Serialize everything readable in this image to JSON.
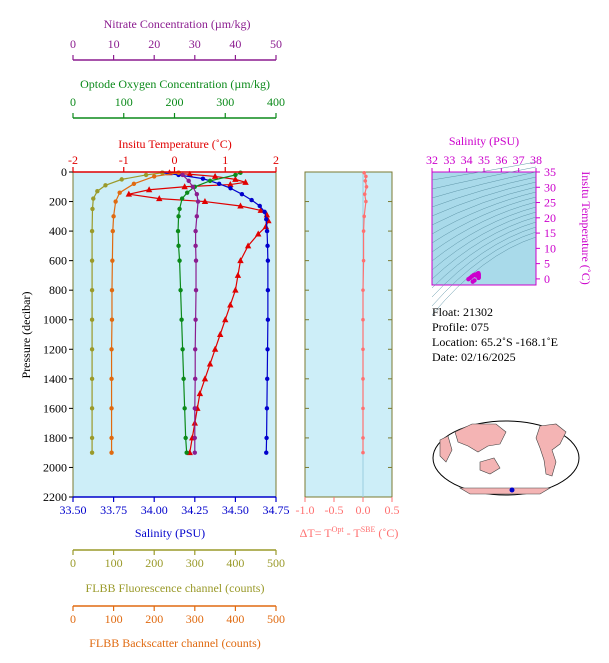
{
  "colors": {
    "nitrate": "#8b1c8f",
    "oxygen": "#0b8a1a",
    "temperature": "#e00000",
    "salinity": "#0000cc",
    "fluorescence": "#9a9a2a",
    "backscatter": "#e06a10",
    "delta": "#ff7070",
    "ts_axis": "#cc00cc",
    "panel_bg": "#cdeef8",
    "ts_bg": "#a9daea",
    "frame": "#7a7a30"
  },
  "info": {
    "float": "Float:  21302",
    "profile": "Profile:  075",
    "location": "Location:  65.2˚S  -168.1˚E",
    "date": "Date:  02/16/2025"
  },
  "map": {
    "marker_label": ""
  },
  "chart_data": [
    {
      "type": "line",
      "panel": "main",
      "ylabel": "Pressure (decibar)",
      "ylim": [
        2200,
        0
      ],
      "y_ticks": [
        0,
        200,
        400,
        600,
        800,
        1000,
        1200,
        1400,
        1600,
        1800,
        2000,
        2200
      ],
      "axes": {
        "nitrate": {
          "label": "Nitrate Concentration (µm/kg)",
          "range": [
            0,
            50
          ],
          "ticks": [
            0,
            10,
            20,
            30,
            40,
            50
          ]
        },
        "oxygen": {
          "label": "Optode Oxygen Concentration (µm/kg)",
          "range": [
            0,
            400
          ],
          "ticks": [
            0,
            100,
            200,
            300,
            400
          ]
        },
        "temperature": {
          "label": "Insitu Temperature (˚C)",
          "range": [
            -2,
            2
          ],
          "ticks": [
            -2,
            -1,
            0,
            1,
            2
          ]
        },
        "salinity": {
          "label": "Salinity (PSU)",
          "range": [
            33.5,
            34.75
          ],
          "ticks": [
            "33.50",
            "33.75",
            "34.00",
            "34.25",
            "34.50",
            "34.75"
          ]
        },
        "fluorescence": {
          "label": "FLBB Fluorescence channel (counts)",
          "range": [
            0,
            500
          ],
          "ticks": [
            0,
            100,
            200,
            300,
            400,
            500
          ]
        },
        "backscatter": {
          "label": "FLBB Backscatter channel (counts)",
          "range": [
            0,
            500
          ],
          "ticks": [
            0,
            100,
            200,
            300,
            400,
            500
          ]
        }
      },
      "series": [
        {
          "name": "Insitu Temperature",
          "axis": "temperature",
          "marker": "triangle",
          "points": [
            [
              -0.1,
              5
            ],
            [
              0.3,
              15
            ],
            [
              0.8,
              30
            ],
            [
              1.2,
              50
            ],
            [
              1.4,
              70
            ],
            [
              1.1,
              85
            ],
            [
              0.2,
              100
            ],
            [
              -0.5,
              120
            ],
            [
              -0.9,
              150
            ],
            [
              -0.3,
              180
            ],
            [
              0.6,
              200
            ],
            [
              1.3,
              230
            ],
            [
              1.7,
              260
            ],
            [
              1.82,
              290
            ],
            [
              1.85,
              330
            ],
            [
              1.8,
              370
            ],
            [
              1.65,
              420
            ],
            [
              1.45,
              500
            ],
            [
              1.3,
              600
            ],
            [
              1.25,
              700
            ],
            [
              1.2,
              800
            ],
            [
              1.1,
              900
            ],
            [
              1.0,
              1000
            ],
            [
              0.9,
              1100
            ],
            [
              0.8,
              1200
            ],
            [
              0.7,
              1300
            ],
            [
              0.6,
              1400
            ],
            [
              0.5,
              1500
            ],
            [
              0.45,
              1600
            ],
            [
              0.4,
              1700
            ],
            [
              0.35,
              1800
            ],
            [
              0.3,
              1900
            ]
          ]
        },
        {
          "name": "Salinity",
          "axis": "salinity",
          "marker": "circle",
          "points": [
            [
              34.05,
              5
            ],
            [
              34.15,
              20
            ],
            [
              34.3,
              45
            ],
            [
              34.4,
              80
            ],
            [
              34.47,
              110
            ],
            [
              34.54,
              150
            ],
            [
              34.6,
              190
            ],
            [
              34.65,
              230
            ],
            [
              34.68,
              270
            ],
            [
              34.69,
              320
            ],
            [
              34.695,
              400
            ],
            [
              34.698,
              500
            ],
            [
              34.7,
              600
            ],
            [
              34.7,
              800
            ],
            [
              34.7,
              1000
            ],
            [
              34.698,
              1200
            ],
            [
              34.696,
              1400
            ],
            [
              34.694,
              1600
            ],
            [
              34.692,
              1800
            ],
            [
              34.69,
              1900
            ]
          ]
        },
        {
          "name": "Optode Oxygen Concentration",
          "axis": "oxygen",
          "marker": "circle",
          "points": [
            [
              330,
              5
            ],
            [
              320,
              20
            ],
            [
              270,
              60
            ],
            [
              240,
              100
            ],
            [
              225,
              140
            ],
            [
              215,
              180
            ],
            [
              210,
              250
            ],
            [
              208,
              300
            ],
            [
              207,
              400
            ],
            [
              208,
              500
            ],
            [
              210,
              600
            ],
            [
              212,
              800
            ],
            [
              214,
              1000
            ],
            [
              216,
              1200
            ],
            [
              218,
              1400
            ],
            [
              220,
              1600
            ],
            [
              222,
              1800
            ],
            [
              224,
              1900
            ]
          ]
        },
        {
          "name": "Nitrate Concentration",
          "axis": "nitrate",
          "marker": "circle",
          "points": [
            [
              26,
              5
            ],
            [
              27,
              20
            ],
            [
              28.5,
              60
            ],
            [
              29.5,
              100
            ],
            [
              30.5,
              150
            ],
            [
              30.8,
              200
            ],
            [
              30.5,
              300
            ],
            [
              30.2,
              400
            ],
            [
              30.2,
              500
            ],
            [
              30.3,
              600
            ],
            [
              30.3,
              800
            ],
            [
              30.2,
              1000
            ],
            [
              30.1,
              1200
            ],
            [
              30.1,
              1400
            ],
            [
              30,
              1600
            ],
            [
              30,
              1800
            ],
            [
              30,
              1900
            ]
          ]
        },
        {
          "name": "FLBB Fluorescence channel",
          "axis": "fluorescence",
          "marker": "circle",
          "points": [
            [
              220,
              5
            ],
            [
              180,
              20
            ],
            [
              120,
              50
            ],
            [
              80,
              90
            ],
            [
              60,
              130
            ],
            [
              50,
              180
            ],
            [
              48,
              250
            ],
            [
              47,
              400
            ],
            [
              47,
              600
            ],
            [
              47,
              800
            ],
            [
              47,
              1000
            ],
            [
              47,
              1200
            ],
            [
              47,
              1400
            ],
            [
              47,
              1600
            ],
            [
              47,
              1800
            ],
            [
              47,
              1900
            ]
          ]
        },
        {
          "name": "FLBB Backscatter channel",
          "axis": "backscatter",
          "marker": "circle",
          "points": [
            [
              260,
              5
            ],
            [
              200,
              30
            ],
            [
              150,
              80
            ],
            [
              115,
              140
            ],
            [
              105,
              200
            ],
            [
              100,
              300
            ],
            [
              98,
              400
            ],
            [
              97,
              600
            ],
            [
              96,
              800
            ],
            [
              96,
              1000
            ],
            [
              95,
              1200
            ],
            [
              95,
              1400
            ],
            [
              95,
              1600
            ],
            [
              95,
              1800
            ],
            [
              95,
              1900
            ]
          ]
        }
      ]
    },
    {
      "type": "line",
      "panel": "delta",
      "xlabel": "ΔT= T",
      "xlabel_sup1": "Opt",
      "xlabel_mid": " - T",
      "xlabel_sup2": "SBE",
      "xlabel_end": " (˚C)",
      "xlim": [
        -1.0,
        0.5
      ],
      "x_ticks": [
        "-1.0",
        "-0.5",
        "0.0",
        "0.5"
      ],
      "ylim": [
        2200,
        0
      ],
      "series": [
        {
          "name": "",
          "points": [
            [
              0.02,
              5
            ],
            [
              0.05,
              30
            ],
            [
              0.04,
              60
            ],
            [
              0.06,
              100
            ],
            [
              0.03,
              150
            ],
            [
              0.05,
              200
            ],
            [
              0.02,
              300
            ],
            [
              0.01,
              400
            ],
            [
              0.01,
              600
            ],
            [
              0.0,
              800
            ],
            [
              0.0,
              1000
            ],
            [
              0.0,
              1200
            ],
            [
              0.0,
              1400
            ],
            [
              0.0,
              1600
            ],
            [
              0.0,
              1800
            ],
            [
              0.0,
              1900
            ]
          ]
        }
      ]
    },
    {
      "type": "scatter",
      "panel": "ts",
      "xlabel": "Salinity (PSU)",
      "ylabel": "Insitu Temperature (˚C)",
      "xlim": [
        32,
        38
      ],
      "x_ticks": [
        32,
        33,
        34,
        35,
        36,
        37,
        38
      ],
      "ylim": [
        -2,
        35
      ],
      "y_ticks": [
        0,
        5,
        10,
        15,
        20,
        25,
        30,
        35
      ],
      "points": [
        [
          34.1,
          -0.1
        ],
        [
          34.2,
          0.3
        ],
        [
          34.3,
          0.8
        ],
        [
          34.4,
          1.2
        ],
        [
          34.5,
          1.4
        ],
        [
          34.55,
          1.1
        ],
        [
          34.6,
          1.6
        ],
        [
          34.65,
          1.8
        ],
        [
          34.68,
          1.85
        ],
        [
          34.7,
          1.5
        ],
        [
          34.7,
          1.0
        ],
        [
          34.7,
          0.5
        ],
        [
          34.69,
          0.3
        ],
        [
          34.45,
          -0.5
        ],
        [
          34.35,
          -0.9
        ]
      ]
    }
  ]
}
